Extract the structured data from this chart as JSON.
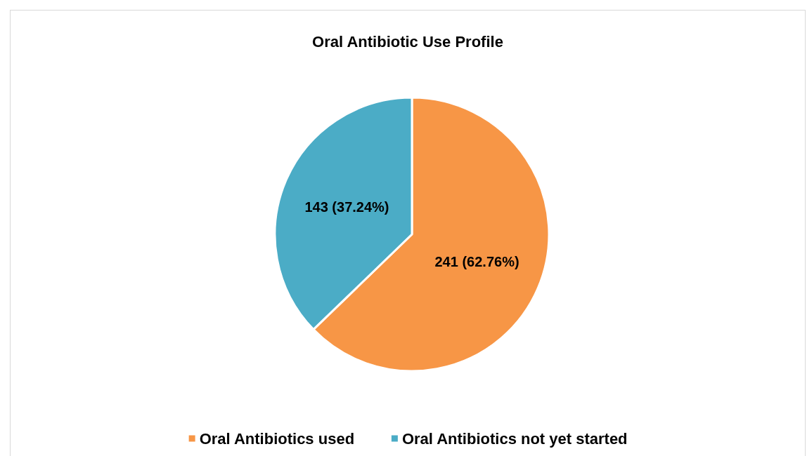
{
  "chart_data": {
    "type": "pie",
    "title": "Oral Antibiotic Use Profile",
    "categories": [
      "Oral Antibiotics used",
      "Oral Antibiotics not yet started"
    ],
    "values": [
      241,
      143
    ],
    "colors": [
      "#f79646",
      "#4bacc6"
    ],
    "value_labels": [
      "241 (62.76%)",
      "143 (37.24%)"
    ],
    "legend": "bottom"
  }
}
